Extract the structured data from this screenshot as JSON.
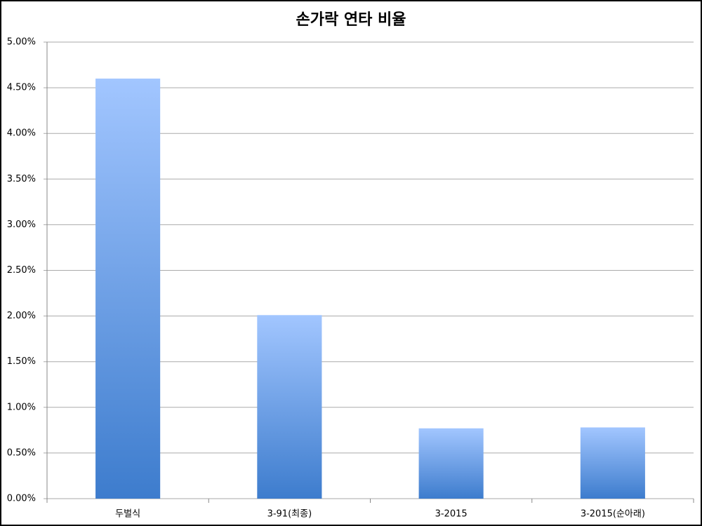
{
  "chart_data": {
    "type": "bar",
    "title": "손가락 연타 비율",
    "categories": [
      "두벌식",
      "3-91(최종)",
      "3-2015",
      "3-2015(순아래)"
    ],
    "values": [
      4.6,
      2.01,
      0.77,
      0.78
    ],
    "gradient": [
      "#a2c6ff",
      "#3d7ccd"
    ],
    "ylim": [
      0,
      5
    ],
    "yticks": [
      {
        "value": 0,
        "label": "0.00%"
      },
      {
        "value": 0.5,
        "label": "0.50%"
      },
      {
        "value": 1,
        "label": "1.00%"
      },
      {
        "value": 1.5,
        "label": "1.50%"
      },
      {
        "value": 2,
        "label": "2.00%"
      },
      {
        "value": 2.5,
        "label": "2.50%"
      },
      {
        "value": 3,
        "label": "3.00%"
      },
      {
        "value": 3.5,
        "label": "3.50%"
      },
      {
        "value": 4,
        "label": "4.00%"
      },
      {
        "value": 4.5,
        "label": "4.50%"
      },
      {
        "value": 5,
        "label": "5.00%"
      }
    ],
    "grid": true
  }
}
